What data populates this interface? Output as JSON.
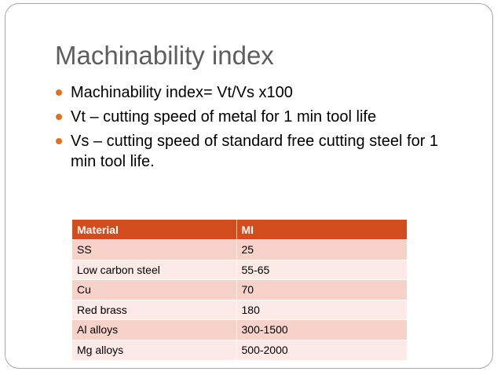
{
  "title": "Machinability index",
  "bullets": [
    "Machinability index= Vt/Vs x100",
    "Vt – cutting speed of metal for 1 min tool life",
    "Vs – cutting speed of standard free cutting steel for 1 min tool life."
  ],
  "table": {
    "headers": [
      "Material",
      "MI"
    ],
    "rows": [
      [
        "SS",
        "25"
      ],
      [
        "Low carbon steel",
        "55-65"
      ],
      [
        "Cu",
        "70"
      ],
      [
        "Red brass",
        "180"
      ],
      [
        "Al  alloys",
        "300-1500"
      ],
      [
        "Mg alloys",
        "500-2000"
      ]
    ]
  },
  "colors": {
    "accent_bullet": "#e2701e",
    "table_header": "#d24d1e",
    "row_dark": "#f7d2c9",
    "row_light": "#fbeae6",
    "title_text": "#5e5e5e"
  }
}
